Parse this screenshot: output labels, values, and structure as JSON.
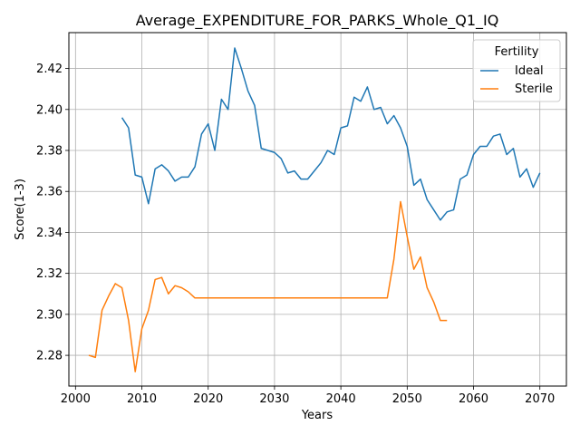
{
  "chart_data": {
    "type": "line",
    "title": "Average_EXPENDITURE_FOR_PARKS_Whole_Q1_IQ",
    "xlabel": "Years",
    "ylabel": "Score(1-3)",
    "xlim": [
      1999,
      2074
    ],
    "ylim": [
      2.265,
      2.4375
    ],
    "xticks": [
      2000,
      2010,
      2020,
      2030,
      2040,
      2050,
      2060,
      2070
    ],
    "yticks": [
      2.28,
      2.3,
      2.32,
      2.34,
      2.36,
      2.38,
      2.4,
      2.42
    ],
    "ytick_labels": [
      "2.28",
      "2.30",
      "2.32",
      "2.34",
      "2.36",
      "2.38",
      "2.40",
      "2.42"
    ],
    "grid": true,
    "legend": {
      "title": "Fertility",
      "placement": "top-right"
    },
    "series": [
      {
        "name": "Ideal",
        "color": "#1f77b4",
        "x": [
          2007,
          2008,
          2009,
          2010,
          2011,
          2012,
          2013,
          2014,
          2015,
          2016,
          2017,
          2018,
          2019,
          2020,
          2021,
          2022,
          2023,
          2024,
          2025,
          2026,
          2027,
          2028,
          2029,
          2030,
          2031,
          2032,
          2033,
          2034,
          2035,
          2036,
          2037,
          2038,
          2039,
          2040,
          2041,
          2042,
          2043,
          2044,
          2045,
          2046,
          2047,
          2048,
          2049,
          2050,
          2051,
          2052,
          2053,
          2054,
          2055,
          2056,
          2057,
          2058,
          2059,
          2060,
          2061,
          2062,
          2063,
          2064,
          2065,
          2066,
          2067,
          2068,
          2069,
          2070
        ],
        "y": [
          2.396,
          2.391,
          2.368,
          2.367,
          2.354,
          2.371,
          2.373,
          2.37,
          2.365,
          2.367,
          2.367,
          2.372,
          2.388,
          2.393,
          2.38,
          2.405,
          2.4,
          2.43,
          2.42,
          2.409,
          2.402,
          2.381,
          2.38,
          2.379,
          2.376,
          2.369,
          2.37,
          2.366,
          2.366,
          2.37,
          2.374,
          2.38,
          2.378,
          2.391,
          2.392,
          2.406,
          2.404,
          2.411,
          2.4,
          2.401,
          2.393,
          2.397,
          2.391,
          2.382,
          2.363,
          2.366,
          2.356,
          2.351,
          2.346,
          2.35,
          2.351,
          2.366,
          2.368,
          2.378,
          2.382,
          2.382,
          2.387,
          2.388,
          2.378,
          2.381,
          2.367,
          2.371,
          2.362,
          2.369
        ]
      },
      {
        "name": "Sterile",
        "color": "#ff7f0e",
        "x": [
          2002,
          2003,
          2004,
          2005,
          2006,
          2007,
          2008,
          2009,
          2010,
          2011,
          2012,
          2013,
          2014,
          2015,
          2016,
          2017,
          2018,
          2019,
          2020,
          2021,
          2022,
          2023,
          2024,
          2025,
          2026,
          2027,
          2028,
          2029,
          2030,
          2031,
          2032,
          2033,
          2034,
          2035,
          2036,
          2037,
          2038,
          2039,
          2040,
          2041,
          2042,
          2043,
          2044,
          2045,
          2046,
          2047,
          2048,
          2049,
          2050,
          2051,
          2052,
          2053,
          2054,
          2055,
          2056
        ],
        "y": [
          2.28,
          2.279,
          2.302,
          2.309,
          2.315,
          2.313,
          2.297,
          2.272,
          2.293,
          2.302,
          2.317,
          2.318,
          2.31,
          2.314,
          2.313,
          2.311,
          2.308,
          2.308,
          2.308,
          2.308,
          2.308,
          2.308,
          2.308,
          2.308,
          2.308,
          2.308,
          2.308,
          2.308,
          2.308,
          2.308,
          2.308,
          2.308,
          2.308,
          2.308,
          2.308,
          2.308,
          2.308,
          2.308,
          2.308,
          2.308,
          2.308,
          2.308,
          2.308,
          2.308,
          2.308,
          2.308,
          2.327,
          2.355,
          2.338,
          2.322,
          2.328,
          2.313,
          2.306,
          2.297,
          2.297
        ]
      }
    ]
  }
}
